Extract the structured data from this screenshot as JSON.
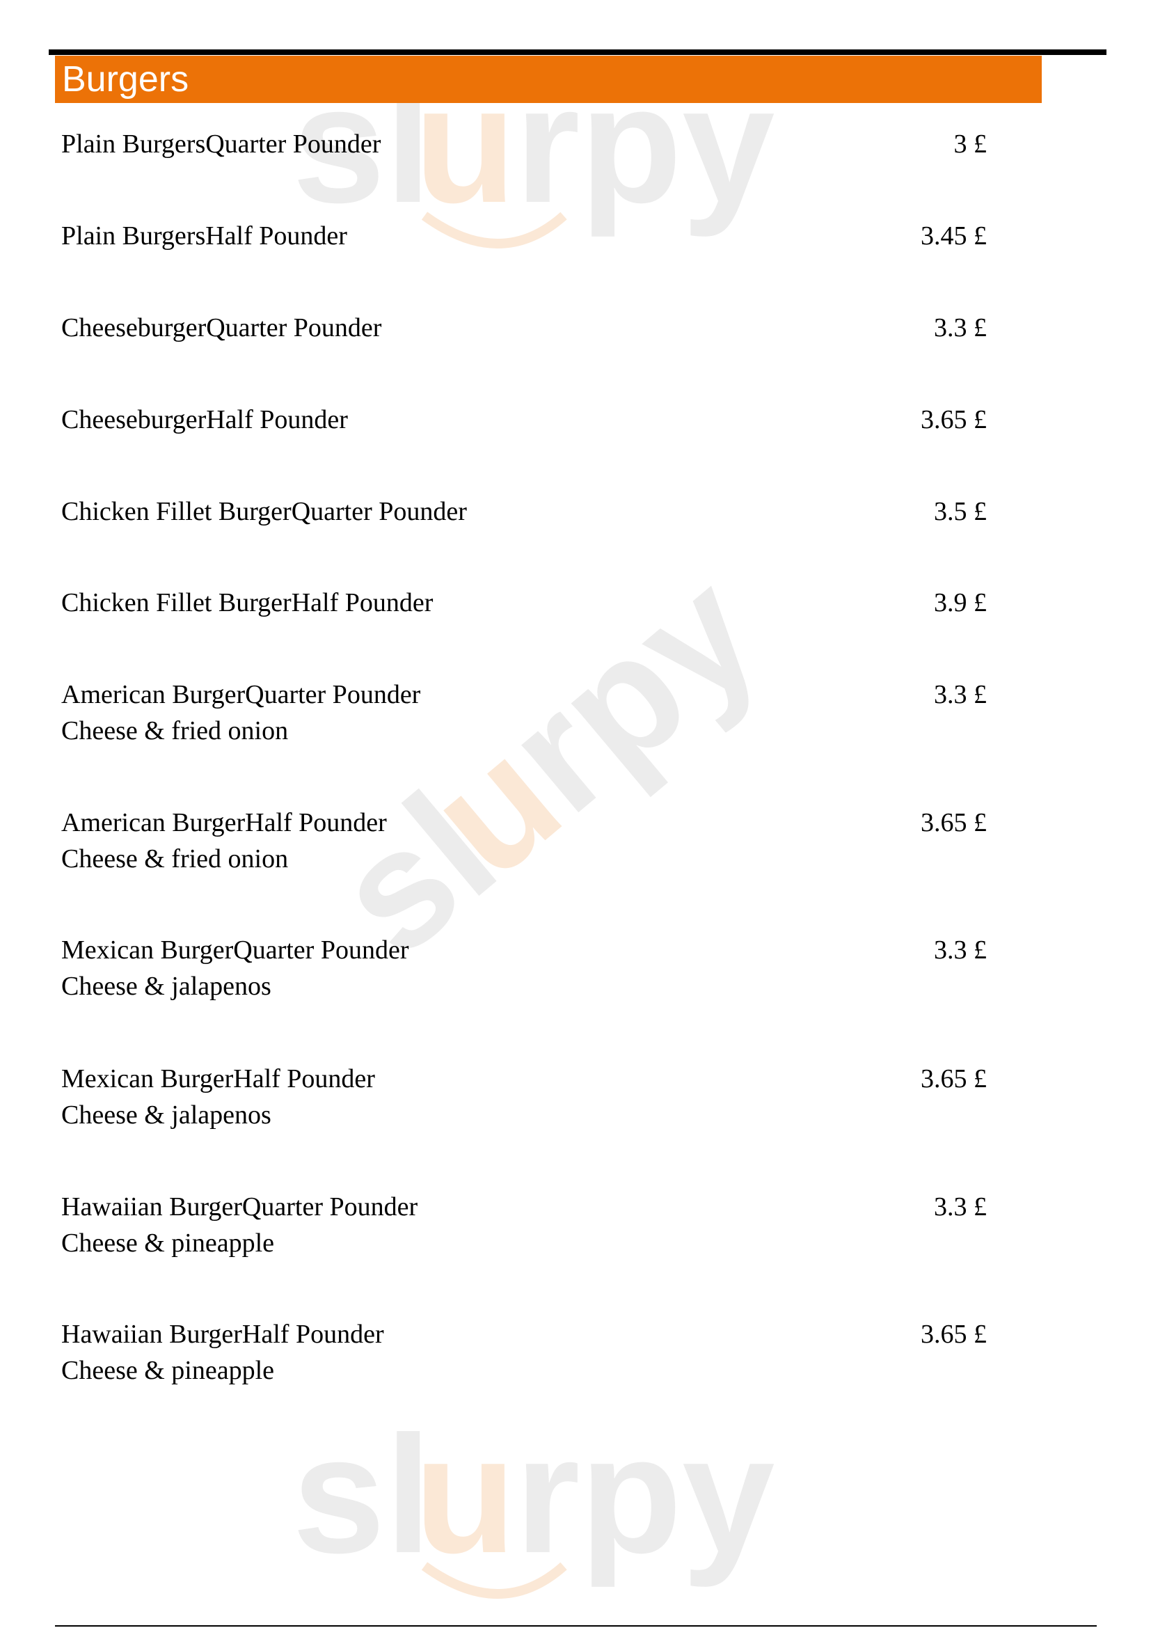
{
  "section": {
    "title": "Burgers"
  },
  "watermark": "sluurpy",
  "colors": {
    "header": "#ec7207",
    "watermark_grey": "#e6e6e6",
    "watermark_orange": "#fbe6d2"
  },
  "items": [
    {
      "name": "Plain BurgersQuarter Pounder",
      "price": "3 £"
    },
    {
      "name": "Plain BurgersHalf Pounder",
      "price": "3.45 £"
    },
    {
      "name": "CheeseburgerQuarter Pounder",
      "price": "3.3 £"
    },
    {
      "name": "CheeseburgerHalf Pounder",
      "price": "3.65 £"
    },
    {
      "name": "Chicken Fillet BurgerQuarter Pounder",
      "price": "3.5 £"
    },
    {
      "name": "Chicken Fillet BurgerHalf Pounder",
      "price": "3.9 £"
    },
    {
      "name": "American BurgerQuarter Pounder",
      "desc": "Cheese & fried onion",
      "price": "3.3 £"
    },
    {
      "name": "American BurgerHalf Pounder",
      "desc": "Cheese & fried onion",
      "price": "3.65 £"
    },
    {
      "name": "Mexican BurgerQuarter Pounder",
      "desc": "Cheese & jalapenos",
      "price": "3.3 £"
    },
    {
      "name": "Mexican BurgerHalf Pounder",
      "desc": "Cheese & jalapenos",
      "price": "3.65 £"
    },
    {
      "name": "Hawaiian BurgerQuarter Pounder",
      "desc": "Cheese & pineapple",
      "price": "3.3 £"
    },
    {
      "name": "Hawaiian BurgerHalf Pounder",
      "desc": "Cheese & pineapple",
      "price": "3.65 £"
    }
  ]
}
